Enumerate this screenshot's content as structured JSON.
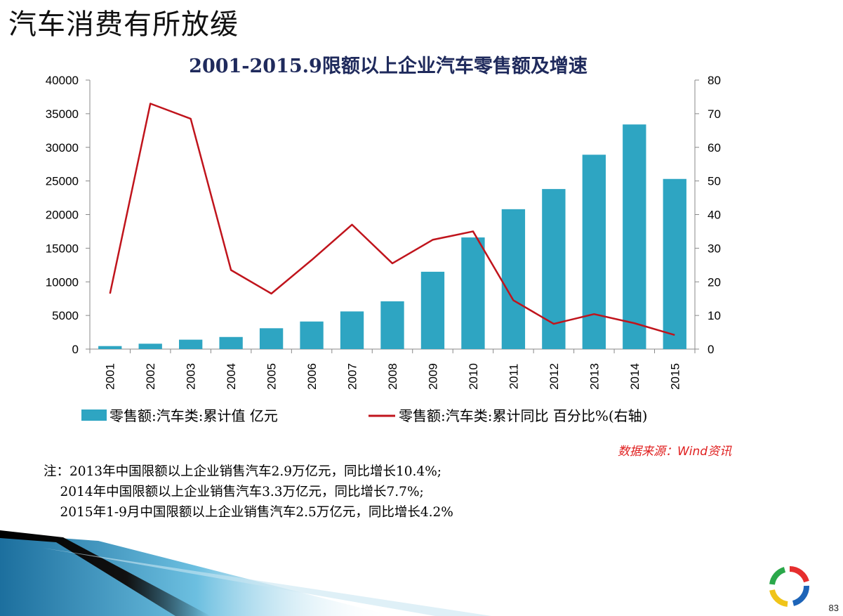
{
  "slide": {
    "title": "汽车消费有所放缓",
    "page_number": "83",
    "source": "数据来源：Wind资讯",
    "notes": [
      "注：2013年中国限额以上企业销售汽车2.9万亿元，同比增长10.4%;",
      "    2014年中国限额以上企业销售汽车3.3万亿元，同比增长7.7%;",
      "    2015年1-9月中国限额以上企业销售汽车2.5万亿元，同比增长4.2%"
    ]
  },
  "chart_data": {
    "type": "bar",
    "title": "2001-2015.9限额以上企业汽车零售额及增速",
    "categories": [
      "2001",
      "2002",
      "2003",
      "2004",
      "2005",
      "2006",
      "2007",
      "2008",
      "2009",
      "2010",
      "2011",
      "2012",
      "2013",
      "2014",
      "2015"
    ],
    "series": [
      {
        "name": "零售额:汽车类:累计值 亿元",
        "type": "bar",
        "axis": "left",
        "color": "#2ea5c2",
        "values": [
          450,
          800,
          1400,
          1800,
          3100,
          4100,
          5600,
          7100,
          11500,
          16600,
          20800,
          23800,
          28900,
          33400,
          25300
        ]
      },
      {
        "name": "零售额:汽车类:累计同比 百分比%(右轴)",
        "type": "line",
        "axis": "right",
        "color": "#c0141c",
        "values": [
          16.5,
          73,
          68.5,
          23.5,
          16.5,
          26.5,
          37,
          25.5,
          32.5,
          35,
          14.5,
          7.5,
          10.4,
          7.7,
          4.2
        ]
      }
    ],
    "y_left": {
      "min": 0,
      "max": 40000,
      "ticks": [
        "0",
        "5000",
        "10000",
        "15000",
        "20000",
        "25000",
        "30000",
        "35000",
        "40000"
      ]
    },
    "y_right": {
      "min": 0,
      "max": 80,
      "ticks": [
        "0",
        "10",
        "20",
        "30",
        "40",
        "50",
        "60",
        "70",
        "80"
      ]
    },
    "grid": false,
    "legend_position": "bottom"
  },
  "colors": {
    "bar": "#2ea5c2",
    "line": "#c0141c",
    "title": "#1f2a5c",
    "source": "#e02020"
  }
}
